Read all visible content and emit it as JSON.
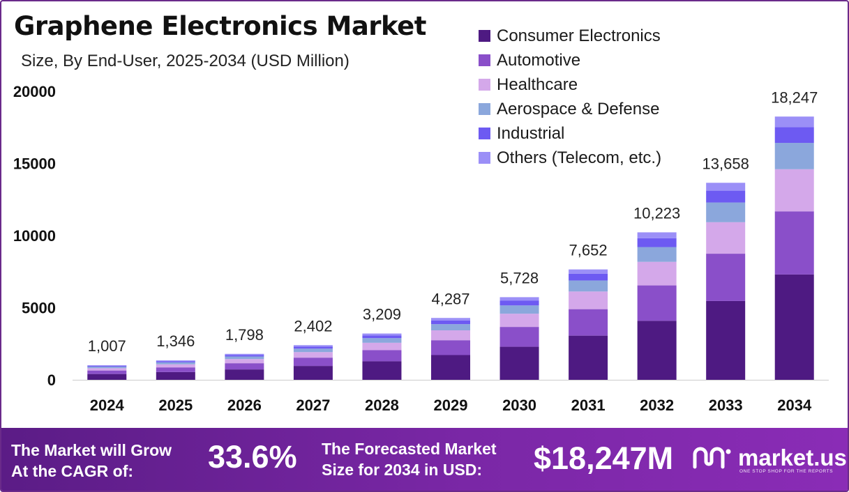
{
  "title": "Graphene Electronics Market",
  "subtitle": "Size, By End-User, 2025-2034 (USD Million)",
  "chart_data": {
    "type": "bar",
    "stacked": true,
    "categories": [
      "2024",
      "2025",
      "2026",
      "2027",
      "2028",
      "2029",
      "2030",
      "2031",
      "2032",
      "2033",
      "2034"
    ],
    "totals": [
      1007,
      1346,
      1798,
      2402,
      3209,
      4287,
      5728,
      7652,
      10223,
      13658,
      18247
    ],
    "total_labels": [
      "1,007",
      "1,346",
      "1,798",
      "2,402",
      "3,209",
      "4,287",
      "5,728",
      "7,652",
      "10,223",
      "13,658",
      "18,247"
    ],
    "series": [
      {
        "name": "Consumer Electronics",
        "color": "#4e1a82",
        "values": [
          403,
          538,
          719,
          961,
          1284,
          1715,
          2291,
          3061,
          4089,
          5463,
          7299
        ]
      },
      {
        "name": "Automotive",
        "color": "#8a4fc9",
        "values": [
          242,
          323,
          432,
          576,
          770,
          1029,
          1375,
          1836,
          2454,
          3278,
          4379
        ]
      },
      {
        "name": "Healthcare",
        "color": "#d4a8ea",
        "values": [
          161,
          215,
          288,
          384,
          513,
          686,
          916,
          1224,
          1636,
          2185,
          2920
        ]
      },
      {
        "name": "Aerospace & Defense",
        "color": "#8ba7dc",
        "values": [
          101,
          135,
          180,
          240,
          321,
          429,
          573,
          765,
          1022,
          1366,
          1825
        ]
      },
      {
        "name": "Industrial",
        "color": "#6d5af2",
        "values": [
          60,
          81,
          108,
          144,
          193,
          257,
          344,
          459,
          613,
          819,
          1095
        ]
      },
      {
        "name": "Others (Telecom, etc.)",
        "color": "#9b8ff7",
        "values": [
          40,
          54,
          72,
          96,
          128,
          171,
          229,
          306,
          409,
          546,
          730
        ]
      }
    ],
    "yticks": [
      0,
      5000,
      10000,
      15000,
      20000
    ],
    "ylim": [
      0,
      20000
    ],
    "grid": false,
    "legend_position": "top-right"
  },
  "footer": {
    "cagr_label_line1": "The Market will Grow",
    "cagr_label_line2": "At the CAGR of:",
    "cagr_value": "33.6%",
    "forecast_label_line1": "The Forecasted Market",
    "forecast_label_line2": "Size for 2034 in USD:",
    "forecast_value": "$18,247M",
    "logo_text": "market.us",
    "logo_tagline": "ONE STOP SHOP FOR THE REPORTS"
  },
  "colors": {
    "footer_start": "#5b1c86",
    "footer_end": "#8a2cb6",
    "border": "#6a2a8a"
  }
}
